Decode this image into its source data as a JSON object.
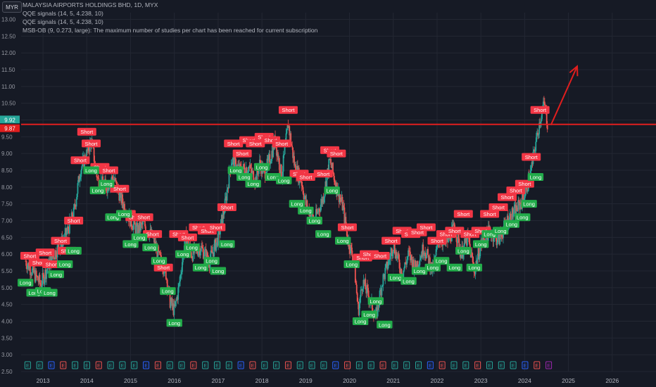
{
  "header": {
    "currency": "MYR",
    "title": "MALAYSIA AIRPORTS HOLDINGS BHD, 1D, MYX",
    "indicators": [
      "QQE signals (14, 5, 4.238, 10)",
      "QQE signals (14, 5, 4.238, 10)",
      "MSB-OB (9, 0.273, large): The maximum number of studies per chart has been reached for current subscription"
    ]
  },
  "price_tags": {
    "last": "9.92",
    "line": "9.87"
  },
  "chart_data": {
    "type": "candlestick",
    "title": "MALAYSIA AIRPORTS HOLDINGS BHD, 1D, MYX",
    "y_ticks": [
      "2.50",
      "3.00",
      "3.50",
      "4.00",
      "4.50",
      "5.00",
      "5.50",
      "6.00",
      "6.50",
      "7.00",
      "7.50",
      "8.00",
      "8.50",
      "9.00",
      "9.50",
      "10.00",
      "10.50",
      "11.00",
      "11.50",
      "12.00",
      "12.50",
      "13.00"
    ],
    "ylim": [
      2.5,
      13.2
    ],
    "x_ticks": [
      "2013",
      "2014",
      "2015",
      "2016",
      "2017",
      "2018",
      "2019",
      "2020",
      "2021",
      "2022",
      "2023",
      "2024",
      "2025",
      "2026"
    ],
    "xlim": [
      2012.5,
      2027.0
    ],
    "resistance_level": 9.87,
    "price_path": [
      [
        2012.6,
        5.8
      ],
      [
        2012.8,
        5.4
      ],
      [
        2012.95,
        5.1
      ],
      [
        2013.1,
        5.6
      ],
      [
        2013.3,
        6.1
      ],
      [
        2013.5,
        6.5
      ],
      [
        2013.7,
        7.2
      ],
      [
        2013.85,
        8.5
      ],
      [
        2014.0,
        9.0
      ],
      [
        2014.1,
        9.4
      ],
      [
        2014.25,
        8.2
      ],
      [
        2014.45,
        8.0
      ],
      [
        2014.6,
        8.3
      ],
      [
        2014.8,
        7.6
      ],
      [
        2015.0,
        7.0
      ],
      [
        2015.15,
        6.7
      ],
      [
        2015.3,
        6.9
      ],
      [
        2015.5,
        6.5
      ],
      [
        2015.65,
        5.9
      ],
      [
        2015.8,
        5.5
      ],
      [
        2015.9,
        4.6
      ],
      [
        2016.0,
        4.3
      ],
      [
        2016.1,
        5.0
      ],
      [
        2016.25,
        6.5
      ],
      [
        2016.4,
        6.0
      ],
      [
        2016.6,
        6.2
      ],
      [
        2016.8,
        5.8
      ],
      [
        2017.0,
        6.5
      ],
      [
        2017.15,
        7.4
      ],
      [
        2017.3,
        8.8
      ],
      [
        2017.5,
        8.5
      ],
      [
        2017.7,
        8.6
      ],
      [
        2017.85,
        8.2
      ],
      [
        2017.95,
        8.7
      ],
      [
        2018.05,
        8.4
      ],
      [
        2018.2,
        8.9
      ],
      [
        2018.3,
        9.4
      ],
      [
        2018.45,
        8.3
      ],
      [
        2018.6,
        9.9
      ],
      [
        2018.75,
        8.6
      ],
      [
        2018.9,
        8.2
      ],
      [
        2019.0,
        7.5
      ],
      [
        2019.2,
        7.0
      ],
      [
        2019.4,
        7.7
      ],
      [
        2019.55,
        8.8
      ],
      [
        2019.7,
        8.0
      ],
      [
        2019.85,
        7.4
      ],
      [
        2019.95,
        6.5
      ],
      [
        2020.1,
        5.8
      ],
      [
        2020.2,
        4.3
      ],
      [
        2020.3,
        5.2
      ],
      [
        2020.45,
        4.7
      ],
      [
        2020.6,
        4.1
      ],
      [
        2020.75,
        5.2
      ],
      [
        2020.9,
        5.8
      ],
      [
        2021.0,
        6.3
      ],
      [
        2021.2,
        5.4
      ],
      [
        2021.35,
        6.0
      ],
      [
        2021.5,
        5.6
      ],
      [
        2021.7,
        6.2
      ],
      [
        2021.9,
        5.5
      ],
      [
        2022.05,
        6.5
      ],
      [
        2022.2,
        6.3
      ],
      [
        2022.4,
        6.8
      ],
      [
        2022.55,
        6.0
      ],
      [
        2022.7,
        6.5
      ],
      [
        2022.85,
        5.5
      ],
      [
        2023.0,
        6.3
      ],
      [
        2023.2,
        6.7
      ],
      [
        2023.4,
        6.4
      ],
      [
        2023.6,
        7.0
      ],
      [
        2023.8,
        7.3
      ],
      [
        2023.95,
        7.6
      ],
      [
        2024.05,
        8.0
      ],
      [
        2024.15,
        8.5
      ],
      [
        2024.25,
        9.3
      ],
      [
        2024.35,
        10.0
      ],
      [
        2024.45,
        10.5
      ],
      [
        2024.52,
        9.9
      ]
    ],
    "signals_short": [
      [
        2012.7,
        5.95
      ],
      [
        2012.9,
        5.75
      ],
      [
        2013.05,
        6.05
      ],
      [
        2013.2,
        5.7
      ],
      [
        2013.4,
        6.4
      ],
      [
        2013.55,
        6.1
      ],
      [
        2013.7,
        7.0
      ],
      [
        2013.85,
        8.8
      ],
      [
        2014.0,
        9.65
      ],
      [
        2014.1,
        9.3
      ],
      [
        2014.3,
        8.6
      ],
      [
        2014.5,
        8.5
      ],
      [
        2014.75,
        7.95
      ],
      [
        2014.9,
        7.2
      ],
      [
        2015.1,
        7.1
      ],
      [
        2015.3,
        7.1
      ],
      [
        2015.5,
        6.6
      ],
      [
        2015.75,
        5.6
      ],
      [
        2016.1,
        6.6
      ],
      [
        2016.3,
        6.5
      ],
      [
        2016.55,
        6.8
      ],
      [
        2016.75,
        6.7
      ],
      [
        2016.95,
        6.8
      ],
      [
        2017.2,
        7.4
      ],
      [
        2017.35,
        9.3
      ],
      [
        2017.55,
        9.0
      ],
      [
        2017.7,
        9.4
      ],
      [
        2017.85,
        9.3
      ],
      [
        2018.05,
        9.5
      ],
      [
        2018.2,
        9.4
      ],
      [
        2018.45,
        9.3
      ],
      [
        2018.6,
        10.3
      ],
      [
        2018.85,
        8.4
      ],
      [
        2019.0,
        8.3
      ],
      [
        2019.4,
        8.4
      ],
      [
        2019.55,
        9.1
      ],
      [
        2019.7,
        9.0
      ],
      [
        2019.95,
        6.8
      ],
      [
        2020.3,
        5.9
      ],
      [
        2020.45,
        6.0
      ],
      [
        2020.7,
        5.95
      ],
      [
        2020.95,
        6.4
      ],
      [
        2021.2,
        6.7
      ],
      [
        2021.4,
        6.6
      ],
      [
        2021.55,
        6.65
      ],
      [
        2021.75,
        6.8
      ],
      [
        2022.0,
        6.4
      ],
      [
        2022.2,
        6.6
      ],
      [
        2022.4,
        6.7
      ],
      [
        2022.6,
        7.2
      ],
      [
        2022.75,
        6.6
      ],
      [
        2023.0,
        6.7
      ],
      [
        2023.2,
        7.2
      ],
      [
        2023.4,
        7.4
      ],
      [
        2023.6,
        7.7
      ],
      [
        2023.8,
        7.9
      ],
      [
        2024.0,
        8.1
      ],
      [
        2024.15,
        8.9
      ],
      [
        2024.35,
        10.3
      ]
    ],
    "signals_long": [
      [
        2012.6,
        5.15
      ],
      [
        2012.8,
        4.85
      ],
      [
        2013.0,
        4.9
      ],
      [
        2013.15,
        4.85
      ],
      [
        2013.3,
        5.4
      ],
      [
        2013.5,
        5.7
      ],
      [
        2013.7,
        6.1
      ],
      [
        2014.1,
        8.5
      ],
      [
        2014.25,
        7.9
      ],
      [
        2014.45,
        8.1
      ],
      [
        2014.6,
        7.1
      ],
      [
        2014.85,
        7.2
      ],
      [
        2015.0,
        6.3
      ],
      [
        2015.2,
        6.5
      ],
      [
        2015.45,
        6.2
      ],
      [
        2015.65,
        5.8
      ],
      [
        2015.85,
        4.9
      ],
      [
        2016.0,
        3.95
      ],
      [
        2016.2,
        6.0
      ],
      [
        2016.4,
        6.2
      ],
      [
        2016.6,
        5.6
      ],
      [
        2016.85,
        5.8
      ],
      [
        2017.0,
        5.5
      ],
      [
        2017.2,
        6.3
      ],
      [
        2017.4,
        8.5
      ],
      [
        2017.6,
        8.3
      ],
      [
        2017.8,
        8.1
      ],
      [
        2018.0,
        8.6
      ],
      [
        2018.25,
        8.3
      ],
      [
        2018.5,
        8.2
      ],
      [
        2018.8,
        7.5
      ],
      [
        2019.0,
        7.3
      ],
      [
        2019.2,
        7.0
      ],
      [
        2019.4,
        6.6
      ],
      [
        2019.6,
        7.9
      ],
      [
        2019.85,
        6.4
      ],
      [
        2020.05,
        5.7
      ],
      [
        2020.25,
        4.0
      ],
      [
        2020.45,
        4.2
      ],
      [
        2020.6,
        4.6
      ],
      [
        2020.8,
        3.9
      ],
      [
        2021.05,
        5.3
      ],
      [
        2021.35,
        5.2
      ],
      [
        2021.6,
        5.5
      ],
      [
        2021.9,
        5.6
      ],
      [
        2022.1,
        5.8
      ],
      [
        2022.4,
        5.6
      ],
      [
        2022.6,
        6.1
      ],
      [
        2022.85,
        5.6
      ],
      [
        2023.0,
        6.3
      ],
      [
        2023.2,
        6.6
      ],
      [
        2023.45,
        6.7
      ],
      [
        2023.7,
        6.9
      ],
      [
        2023.95,
        7.1
      ],
      [
        2024.1,
        7.5
      ],
      [
        2024.25,
        8.3
      ]
    ],
    "labels": {
      "short": "Short",
      "long": "Long"
    },
    "colors": {
      "up": "#26a69a",
      "down": "#ef5350",
      "short_badge": "#f23645",
      "long_badge": "#22ab4a",
      "resistance": "#e01e1e",
      "background": "#161a25",
      "grid": "#232733"
    },
    "annotation": {
      "type": "arrow",
      "color": "#e01e1e",
      "from": [
        2024.6,
        9.85
      ],
      "to": [
        2025.2,
        11.6
      ]
    },
    "events_row": {
      "marker": "E",
      "count": 45
    }
  }
}
